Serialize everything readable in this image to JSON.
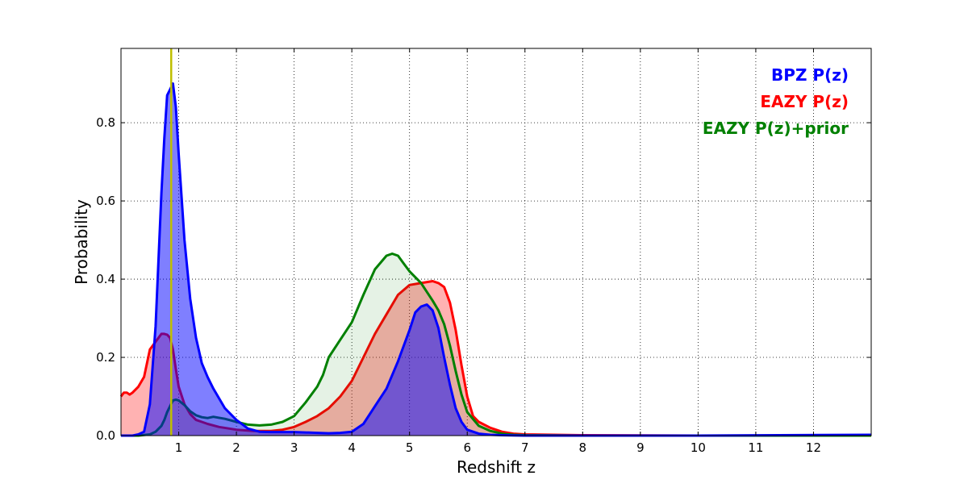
{
  "chart_data": {
    "type": "area",
    "xlabel": "Redshift z",
    "ylabel": "Probability",
    "xlim": [
      0,
      13
    ],
    "ylim": [
      0,
      0.99
    ],
    "xticks": [
      1,
      2,
      3,
      4,
      5,
      6,
      7,
      8,
      9,
      10,
      11,
      12
    ],
    "yticks": [
      0.0,
      0.2,
      0.4,
      0.6,
      0.8
    ],
    "ytick_labels": [
      "0.0",
      "0.2",
      "0.4",
      "0.6",
      "0.8"
    ],
    "grid": true,
    "legend_placement": "top-right",
    "reference_line": {
      "x": 0.87,
      "color": "#bfbf00"
    },
    "series": [
      {
        "name": "EAZY P(z)",
        "color": "#ff0000",
        "fill": "#ff0000",
        "fill_opacity": 0.3,
        "x": [
          0.0,
          0.05,
          0.1,
          0.15,
          0.2,
          0.3,
          0.4,
          0.5,
          0.6,
          0.65,
          0.7,
          0.75,
          0.8,
          0.85,
          0.9,
          0.95,
          1.0,
          1.1,
          1.2,
          1.3,
          1.4,
          1.5,
          1.7,
          2.0,
          2.3,
          2.6,
          2.8,
          3.0,
          3.2,
          3.4,
          3.5,
          3.6,
          3.8,
          4.0,
          4.2,
          4.4,
          4.6,
          4.8,
          5.0,
          5.2,
          5.4,
          5.5,
          5.6,
          5.7,
          5.8,
          5.9,
          6.0,
          6.1,
          6.2,
          6.4,
          6.6,
          6.8,
          7.0,
          8.0,
          10.0,
          13.0
        ],
        "y": [
          0.1,
          0.11,
          0.11,
          0.105,
          0.11,
          0.125,
          0.15,
          0.22,
          0.24,
          0.25,
          0.26,
          0.26,
          0.258,
          0.25,
          0.22,
          0.17,
          0.125,
          0.08,
          0.055,
          0.04,
          0.035,
          0.03,
          0.022,
          0.015,
          0.012,
          0.012,
          0.015,
          0.022,
          0.035,
          0.05,
          0.06,
          0.07,
          0.1,
          0.14,
          0.2,
          0.26,
          0.31,
          0.36,
          0.385,
          0.39,
          0.395,
          0.39,
          0.38,
          0.34,
          0.27,
          0.18,
          0.1,
          0.05,
          0.035,
          0.02,
          0.01,
          0.005,
          0.003,
          0.001,
          0.0,
          0.0
        ]
      },
      {
        "name": "EAZY P(z)+prior",
        "color": "#008000",
        "fill": "#008000",
        "fill_opacity": 0.1,
        "x": [
          0.0,
          0.3,
          0.5,
          0.6,
          0.7,
          0.75,
          0.8,
          0.85,
          0.9,
          0.95,
          1.0,
          1.1,
          1.2,
          1.3,
          1.4,
          1.5,
          1.6,
          1.8,
          2.0,
          2.2,
          2.4,
          2.6,
          2.8,
          3.0,
          3.2,
          3.4,
          3.5,
          3.6,
          3.8,
          4.0,
          4.2,
          4.4,
          4.6,
          4.7,
          4.8,
          4.9,
          5.0,
          5.2,
          5.4,
          5.5,
          5.6,
          5.7,
          5.8,
          5.9,
          6.0,
          6.2,
          6.4,
          6.6,
          6.8,
          7.0,
          8.0,
          13.0
        ],
        "y": [
          0.0,
          0.0,
          0.003,
          0.01,
          0.025,
          0.04,
          0.06,
          0.075,
          0.09,
          0.092,
          0.09,
          0.078,
          0.062,
          0.052,
          0.047,
          0.045,
          0.048,
          0.043,
          0.035,
          0.028,
          0.026,
          0.028,
          0.035,
          0.05,
          0.085,
          0.125,
          0.155,
          0.2,
          0.245,
          0.29,
          0.36,
          0.425,
          0.46,
          0.465,
          0.46,
          0.44,
          0.42,
          0.39,
          0.345,
          0.32,
          0.285,
          0.23,
          0.165,
          0.105,
          0.06,
          0.025,
          0.012,
          0.005,
          0.002,
          0.001,
          0.0,
          0.0
        ]
      },
      {
        "name": "BPZ P(z)",
        "color": "#0000ff",
        "fill": "#0000ff",
        "fill_opacity": 0.5,
        "x": [
          0.0,
          0.2,
          0.3,
          0.4,
          0.5,
          0.6,
          0.65,
          0.7,
          0.75,
          0.8,
          0.85,
          0.9,
          0.95,
          1.0,
          1.05,
          1.1,
          1.2,
          1.3,
          1.4,
          1.5,
          1.6,
          1.8,
          2.0,
          2.2,
          2.4,
          2.6,
          3.0,
          3.4,
          3.6,
          3.8,
          4.0,
          4.2,
          4.4,
          4.6,
          4.8,
          5.0,
          5.1,
          5.2,
          5.3,
          5.4,
          5.5,
          5.6,
          5.7,
          5.8,
          5.9,
          6.0,
          6.2,
          6.4,
          6.6,
          7.0,
          8.0,
          10.0,
          13.0
        ],
        "y": [
          0.0,
          0.0,
          0.003,
          0.01,
          0.08,
          0.28,
          0.45,
          0.62,
          0.76,
          0.87,
          0.885,
          0.9,
          0.84,
          0.72,
          0.61,
          0.5,
          0.35,
          0.25,
          0.185,
          0.15,
          0.12,
          0.07,
          0.04,
          0.018,
          0.01,
          0.009,
          0.009,
          0.007,
          0.006,
          0.007,
          0.01,
          0.03,
          0.075,
          0.12,
          0.19,
          0.27,
          0.315,
          0.33,
          0.335,
          0.32,
          0.275,
          0.2,
          0.13,
          0.07,
          0.035,
          0.015,
          0.005,
          0.002,
          0.001,
          0.0,
          0.0,
          0.0,
          0.002
        ]
      }
    ],
    "legend": [
      {
        "label": "BPZ P(z)",
        "color": "#0000ff"
      },
      {
        "label": "EAZY P(z)",
        "color": "#ff0000"
      },
      {
        "label": "EAZY P(z)+prior",
        "color": "#008000"
      }
    ]
  }
}
